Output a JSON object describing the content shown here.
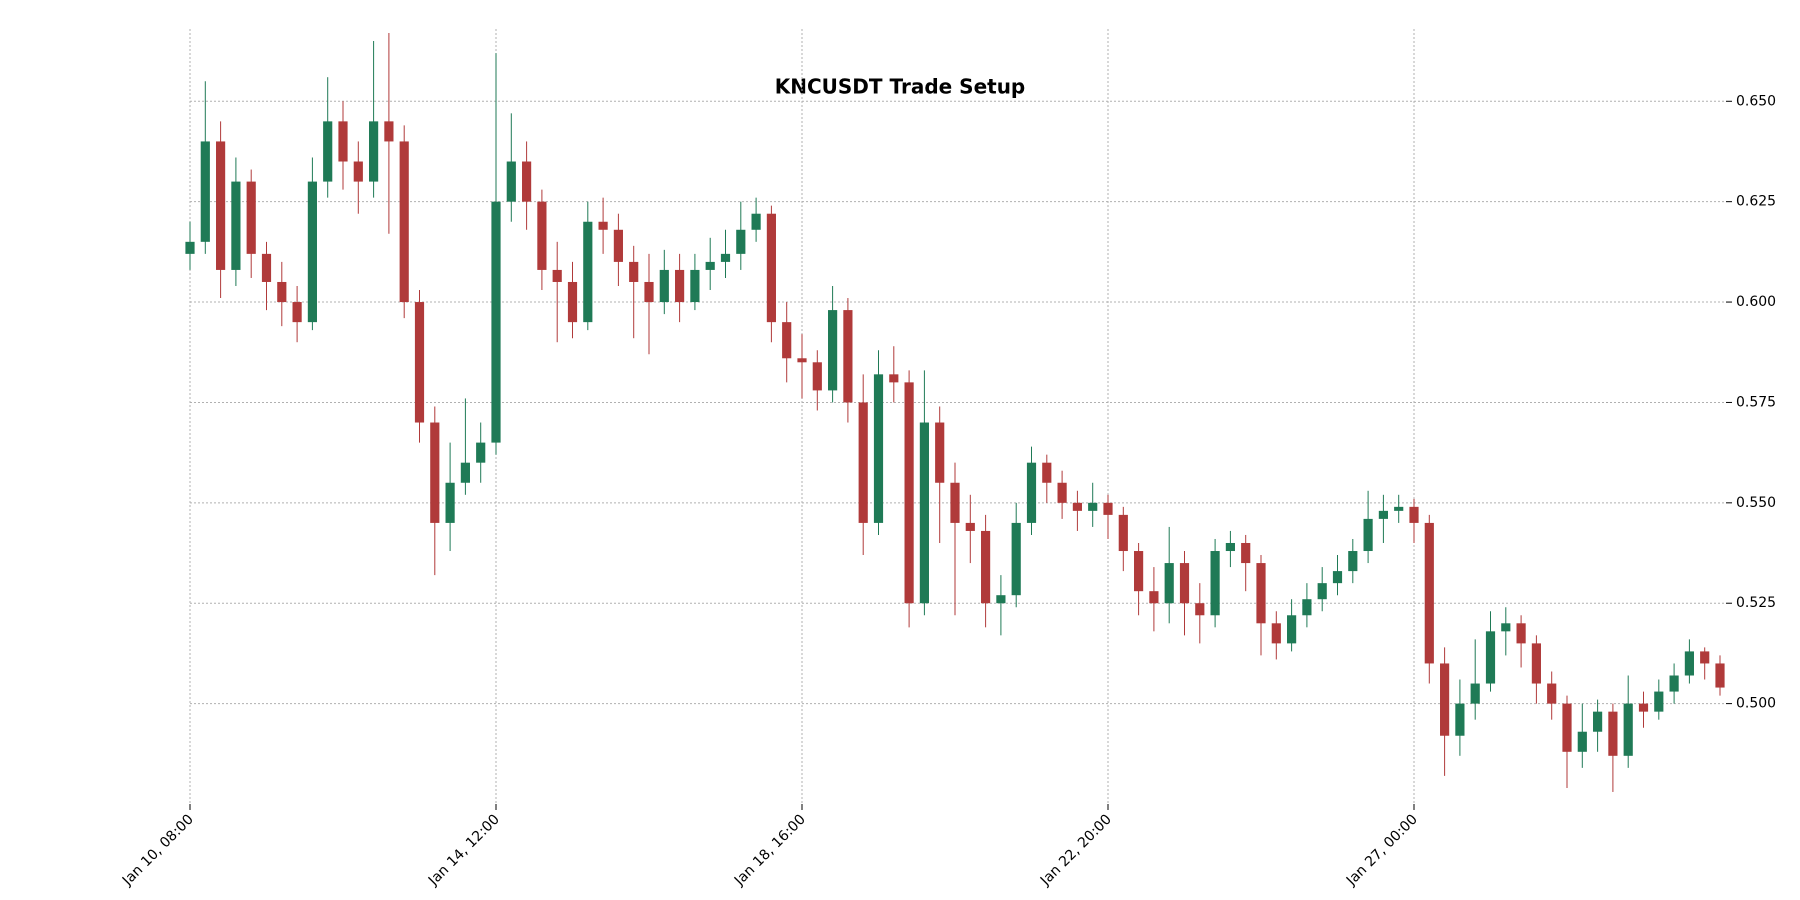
{
  "chart_data": {
    "type": "candlestick",
    "title": "KNCUSDT Trade Setup",
    "x": [
      "Jan 10, 08:00",
      "Jan 10, 13:00",
      "Jan 10, 18:00",
      "Jan 10, 23:00",
      "Jan 11, 04:00",
      "Jan 11, 09:00",
      "Jan 11, 14:00",
      "Jan 11, 19:00",
      "Jan 12, 00:00",
      "Jan 12, 05:00",
      "Jan 12, 10:00",
      "Jan 12, 15:00",
      "Jan 12, 20:00",
      "Jan 13, 01:00",
      "Jan 13, 06:00",
      "Jan 13, 11:00",
      "Jan 13, 16:00",
      "Jan 13, 21:00",
      "Jan 14, 02:00",
      "Jan 14, 07:00",
      "Jan 14, 12:00",
      "Jan 14, 17:00",
      "Jan 14, 22:00",
      "Jan 15, 03:00",
      "Jan 15, 08:00",
      "Jan 15, 13:00",
      "Jan 15, 18:00",
      "Jan 15, 23:00",
      "Jan 16, 04:00",
      "Jan 16, 09:00",
      "Jan 16, 14:00",
      "Jan 16, 19:00",
      "Jan 17, 00:00",
      "Jan 17, 05:00",
      "Jan 17, 10:00",
      "Jan 17, 15:00",
      "Jan 17, 20:00",
      "Jan 18, 01:00",
      "Jan 18, 06:00",
      "Jan 18, 11:00",
      "Jan 18, 16:00",
      "Jan 18, 21:00",
      "Jan 19, 02:00",
      "Jan 19, 07:00",
      "Jan 19, 12:00",
      "Jan 19, 17:00",
      "Jan 19, 22:00",
      "Jan 20, 03:00",
      "Jan 20, 08:00",
      "Jan 20, 13:00",
      "Jan 20, 18:00",
      "Jan 20, 23:00",
      "Jan 21, 04:00",
      "Jan 21, 09:00",
      "Jan 21, 14:00",
      "Jan 21, 19:00",
      "Jan 22, 00:00",
      "Jan 22, 05:00",
      "Jan 22, 10:00",
      "Jan 22, 15:00",
      "Jan 22, 20:00",
      "Jan 23, 01:00",
      "Jan 23, 06:00",
      "Jan 23, 11:00",
      "Jan 23, 16:00",
      "Jan 23, 21:00",
      "Jan 24, 02:00",
      "Jan 24, 07:00",
      "Jan 24, 12:00",
      "Jan 24, 17:00",
      "Jan 24, 22:00",
      "Jan 25, 03:00",
      "Jan 25, 08:00",
      "Jan 25, 13:00",
      "Jan 25, 18:00",
      "Jan 25, 23:00",
      "Jan 26, 04:00",
      "Jan 26, 09:00",
      "Jan 26, 14:00",
      "Jan 26, 19:00",
      "Jan 27, 00:00",
      "Jan 27, 05:00",
      "Jan 27, 10:00",
      "Jan 27, 15:00",
      "Jan 27, 20:00",
      "Jan 28, 01:00",
      "Jan 28, 06:00",
      "Jan 28, 11:00",
      "Jan 28, 16:00",
      "Jan 28, 21:00",
      "Jan 29, 02:00",
      "Jan 29, 07:00",
      "Jan 29, 12:00",
      "Jan 29, 17:00",
      "Jan 29, 22:00",
      "Jan 30, 03:00",
      "Jan 30, 08:00",
      "Jan 30, 13:00",
      "Jan 30, 18:00",
      "Jan 30, 23:00",
      "Jan 31, 04:00"
    ],
    "open": [
      0.612,
      0.615,
      0.64,
      0.608,
      0.63,
      0.612,
      0.605,
      0.6,
      0.595,
      0.63,
      0.645,
      0.635,
      0.63,
      0.645,
      0.64,
      0.6,
      0.57,
      0.545,
      0.555,
      0.56,
      0.565,
      0.625,
      0.635,
      0.625,
      0.608,
      0.605,
      0.595,
      0.62,
      0.618,
      0.61,
      0.605,
      0.6,
      0.608,
      0.6,
      0.608,
      0.61,
      0.612,
      0.618,
      0.622,
      0.595,
      0.586,
      0.585,
      0.578,
      0.598,
      0.575,
      0.545,
      0.582,
      0.58,
      0.525,
      0.57,
      0.555,
      0.545,
      0.543,
      0.525,
      0.527,
      0.545,
      0.56,
      0.555,
      0.55,
      0.548,
      0.55,
      0.547,
      0.538,
      0.528,
      0.525,
      0.535,
      0.525,
      0.522,
      0.538,
      0.54,
      0.535,
      0.52,
      0.515,
      0.522,
      0.526,
      0.53,
      0.533,
      0.538,
      0.546,
      0.548,
      0.549,
      0.545,
      0.51,
      0.492,
      0.5,
      0.505,
      0.518,
      0.52,
      0.515,
      0.505,
      0.5,
      0.488,
      0.493,
      0.498,
      0.487,
      0.5,
      0.498,
      0.503,
      0.507,
      0.513,
      0.51
    ],
    "high": [
      0.62,
      0.655,
      0.645,
      0.636,
      0.633,
      0.615,
      0.61,
      0.604,
      0.636,
      0.656,
      0.65,
      0.64,
      0.665,
      0.667,
      0.644,
      0.603,
      0.574,
      0.565,
      0.576,
      0.57,
      0.662,
      0.647,
      0.64,
      0.628,
      0.615,
      0.61,
      0.625,
      0.626,
      0.622,
      0.614,
      0.612,
      0.613,
      0.612,
      0.612,
      0.616,
      0.618,
      0.625,
      0.626,
      0.624,
      0.6,
      0.592,
      0.588,
      0.604,
      0.601,
      0.582,
      0.588,
      0.589,
      0.583,
      0.583,
      0.574,
      0.56,
      0.552,
      0.547,
      0.532,
      0.55,
      0.564,
      0.562,
      0.558,
      0.553,
      0.555,
      0.552,
      0.549,
      0.54,
      0.534,
      0.544,
      0.538,
      0.53,
      0.541,
      0.543,
      0.542,
      0.537,
      0.523,
      0.526,
      0.53,
      0.534,
      0.537,
      0.541,
      0.553,
      0.552,
      0.552,
      0.551,
      0.547,
      0.514,
      0.506,
      0.516,
      0.523,
      0.524,
      0.522,
      0.517,
      0.508,
      0.502,
      0.5,
      0.501,
      0.5,
      0.507,
      0.503,
      0.506,
      0.51,
      0.516,
      0.514,
      0.512
    ],
    "low": [
      0.608,
      0.612,
      0.601,
      0.604,
      0.606,
      0.598,
      0.594,
      0.59,
      0.593,
      0.626,
      0.628,
      0.622,
      0.626,
      0.617,
      0.596,
      0.565,
      0.532,
      0.538,
      0.552,
      0.555,
      0.562,
      0.62,
      0.618,
      0.603,
      0.59,
      0.591,
      0.593,
      0.612,
      0.604,
      0.591,
      0.587,
      0.597,
      0.595,
      0.598,
      0.603,
      0.606,
      0.608,
      0.615,
      0.59,
      0.58,
      0.576,
      0.573,
      0.575,
      0.57,
      0.537,
      0.542,
      0.575,
      0.519,
      0.522,
      0.54,
      0.522,
      0.535,
      0.519,
      0.517,
      0.524,
      0.542,
      0.55,
      0.546,
      0.543,
      0.544,
      0.541,
      0.533,
      0.522,
      0.518,
      0.52,
      0.517,
      0.515,
      0.519,
      0.534,
      0.528,
      0.512,
      0.511,
      0.513,
      0.519,
      0.523,
      0.527,
      0.53,
      0.535,
      0.54,
      0.545,
      0.54,
      0.505,
      0.482,
      0.487,
      0.496,
      0.503,
      0.512,
      0.509,
      0.5,
      0.496,
      0.479,
      0.484,
      0.488,
      0.478,
      0.484,
      0.494,
      0.496,
      0.5,
      0.505,
      0.506,
      0.502
    ],
    "close": [
      0.615,
      0.64,
      0.608,
      0.63,
      0.612,
      0.605,
      0.6,
      0.595,
      0.63,
      0.645,
      0.635,
      0.63,
      0.645,
      0.64,
      0.6,
      0.57,
      0.545,
      0.555,
      0.56,
      0.565,
      0.625,
      0.635,
      0.625,
      0.608,
      0.605,
      0.595,
      0.62,
      0.618,
      0.61,
      0.605,
      0.6,
      0.608,
      0.6,
      0.608,
      0.61,
      0.612,
      0.618,
      0.622,
      0.595,
      0.586,
      0.585,
      0.578,
      0.598,
      0.575,
      0.545,
      0.582,
      0.58,
      0.525,
      0.57,
      0.555,
      0.545,
      0.543,
      0.525,
      0.527,
      0.545,
      0.56,
      0.555,
      0.55,
      0.548,
      0.55,
      0.547,
      0.538,
      0.528,
      0.525,
      0.535,
      0.525,
      0.522,
      0.538,
      0.54,
      0.535,
      0.52,
      0.515,
      0.522,
      0.526,
      0.53,
      0.533,
      0.538,
      0.546,
      0.548,
      0.549,
      0.545,
      0.51,
      0.492,
      0.5,
      0.505,
      0.518,
      0.52,
      0.515,
      0.505,
      0.5,
      0.488,
      0.493,
      0.498,
      0.487,
      0.5,
      0.498,
      0.503,
      0.507,
      0.513,
      0.51,
      0.504
    ],
    "up_color": "#1f7a56",
    "down_color": "#b03a3a",
    "ylim": [
      0.475,
      0.668
    ],
    "yticks": [
      {
        "value": 0.5,
        "label": "0.500"
      },
      0.525,
      {
        "value": 0.55,
        "label": "0.550"
      },
      0.575,
      {
        "value": 0.6,
        "label": "0.600"
      },
      0.625,
      {
        "value": 0.65,
        "label": "0.650"
      }
    ],
    "xticks": [
      "Jan 10, 08:00",
      "Jan 14, 12:00",
      "Jan 18, 16:00",
      "Jan 22, 20:00",
      "Jan 27, 00:00"
    ],
    "grid": true
  }
}
